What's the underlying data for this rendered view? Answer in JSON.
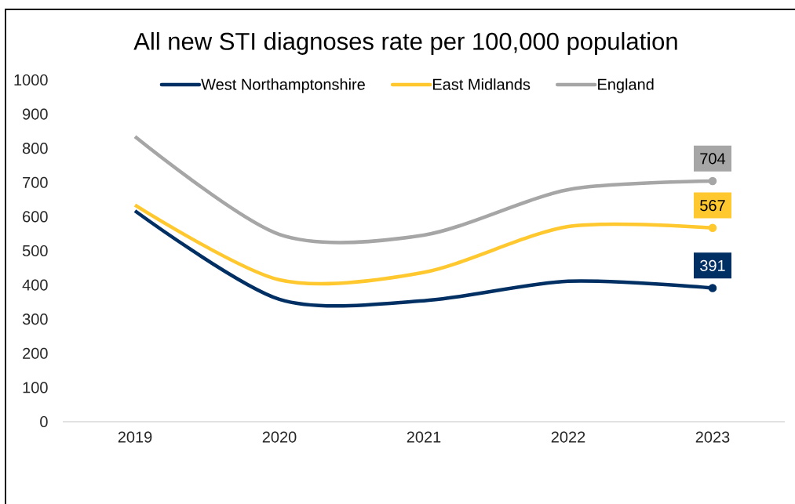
{
  "chart_data": {
    "type": "line",
    "title": "All new STI diagnoses rate per 100,000 population",
    "categories": [
      "2019",
      "2020",
      "2021",
      "2022",
      "2023"
    ],
    "series": [
      {
        "name": "West Northamptonshire",
        "color": "#002f63",
        "values": [
          617,
          358,
          354,
          411,
          391
        ],
        "value_labels": [
          null,
          null,
          null,
          null,
          "391"
        ]
      },
      {
        "name": "East Midlands",
        "color": "#ffc82e",
        "values": [
          634,
          415,
          437,
          571,
          567
        ],
        "value_labels": [
          null,
          null,
          null,
          null,
          "567"
        ]
      },
      {
        "name": "England",
        "color": "#a6a6a6",
        "values": [
          834,
          548,
          546,
          679,
          704
        ],
        "value_labels": [
          null,
          null,
          null,
          null,
          "704"
        ]
      }
    ],
    "ylim": [
      0,
      1000
    ],
    "yticks": [
      0,
      100,
      200,
      300,
      400,
      500,
      600,
      700,
      800,
      900,
      1000
    ],
    "legend": "top",
    "line_style": "solid"
  }
}
